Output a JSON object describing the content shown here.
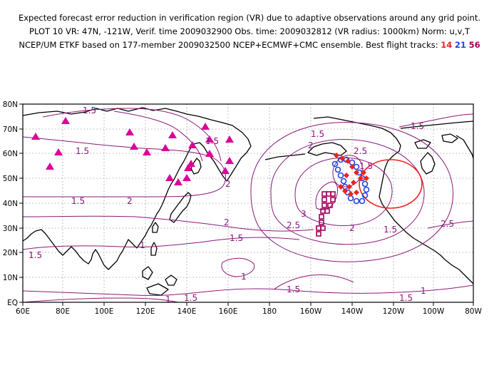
{
  "header": {
    "line1": "Expected forecast error reduction in verification region (VR) due to adaptive observations around any grid point.",
    "line2": "PLOT 10 VR: 47N, -121W, Verif. time 2009032900 Obs. time: 2009032812 (VR radius: 1000km) Norm: u,v,T",
    "line3_prefix": "NCEP/UM ETKF based on 177-member 2009032500 NCEP+ECMWF+CMC ensemble. Best flight tracks:",
    "track_a": "14",
    "track_b": "21",
    "track_c": "56"
  },
  "map": {
    "lon_labels": [
      "60E",
      "80E",
      "100E",
      "120E",
      "140E",
      "160E",
      "180",
      "160W",
      "140W",
      "120W",
      "100W",
      "80W"
    ],
    "lat_labels": [
      "EQ",
      "10N",
      "20N",
      "30N",
      "40N",
      "50N",
      "60N",
      "70N",
      "80N"
    ],
    "contour_labels": [
      "1.5",
      "1.5",
      "1.5",
      "1.5",
      "1.5",
      "1.5",
      "1.5",
      "1.5",
      "1.5",
      "1.5",
      "1.5",
      "1.5",
      "1.5",
      "1",
      "1",
      "1",
      "1",
      "1",
      "2",
      "2",
      "2",
      "2",
      "2",
      "2.5",
      "2.5",
      "2.5",
      "3"
    ],
    "colors": {
      "contour": "#8a1a7a",
      "track_14": "#ee2222",
      "track_21": "#2244dd",
      "track_56": "#a0005a",
      "raob": "#dd0099",
      "verification_circle": "#ee2222"
    }
  }
}
